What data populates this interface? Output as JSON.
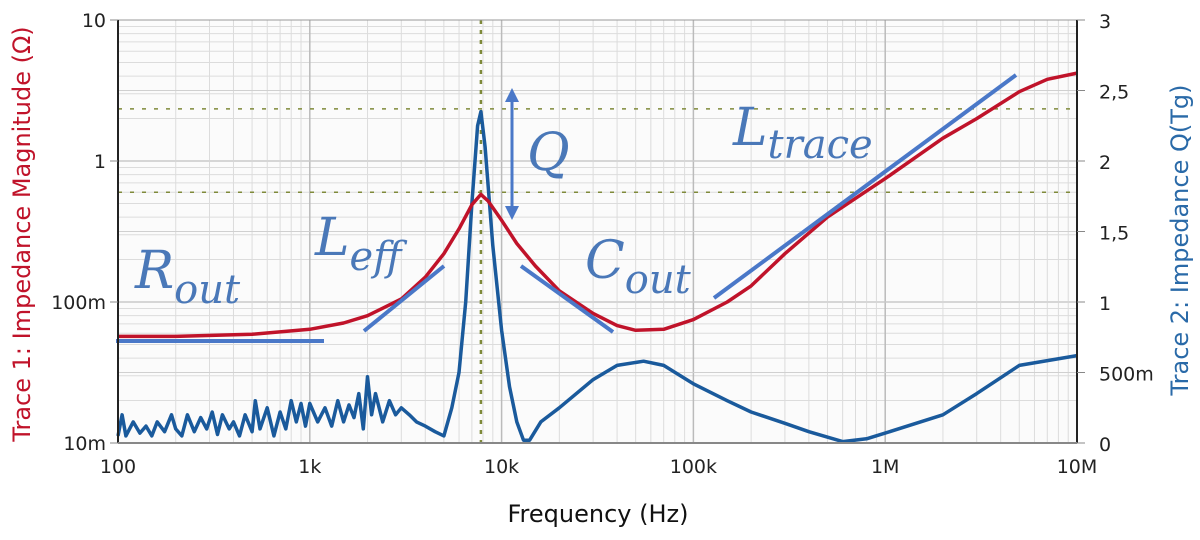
{
  "chart_data": {
    "type": "line",
    "xlabel": "Frequency (Hz)",
    "ylabel_left": "Trace 1: Impedance Magnitude (Ω)",
    "ylabel_right": "Trace 2: Impedance Q(Tg)",
    "x_scale": "log",
    "xlim": [
      100,
      10000000
    ],
    "x_ticks": [
      {
        "v": 100,
        "label": "100"
      },
      {
        "v": 1000,
        "label": "1k"
      },
      {
        "v": 10000,
        "label": "10k"
      },
      {
        "v": 100000,
        "label": "100k"
      },
      {
        "v": 1000000,
        "label": "1M"
      },
      {
        "v": 10000000,
        "label": "10M"
      }
    ],
    "y_left_scale": "log",
    "y_left_lim": [
      0.01,
      10
    ],
    "y_left_ticks": [
      {
        "v": 0.01,
        "label": "10m"
      },
      {
        "v": 0.1,
        "label": "100m"
      },
      {
        "v": 1,
        "label": "1"
      },
      {
        "v": 10,
        "label": "10"
      }
    ],
    "y_right_scale": "linear",
    "y_right_lim": [
      0,
      3
    ],
    "y_right_ticks": [
      {
        "v": 0,
        "label": "0"
      },
      {
        "v": 0.5,
        "label": "500m"
      },
      {
        "v": 1,
        "label": "1"
      },
      {
        "v": 1.5,
        "label": "1,5"
      },
      {
        "v": 2,
        "label": "2"
      },
      {
        "v": 2.5,
        "label": "2,5"
      },
      {
        "v": 3,
        "label": "3"
      }
    ],
    "grid": true,
    "colors": {
      "trace1": "#c0132a",
      "trace2": "#1a5a9c",
      "annotation": "#4a78b8",
      "marker": "#7f8a3a"
    },
    "series": [
      {
        "axis": "left",
        "color": "#c0132a",
        "x": [
          100,
          200,
          500,
          1000,
          1500,
          2000,
          3000,
          4000,
          5000,
          6000,
          7000,
          7800,
          8500,
          10000,
          12000,
          15000,
          20000,
          30000,
          40000,
          50000,
          70000,
          100000,
          150000,
          200000,
          300000,
          500000,
          1000000,
          2000000,
          3000000,
          5000000,
          7000000,
          10000000
        ],
        "y": [
          0.057,
          0.057,
          0.059,
          0.064,
          0.071,
          0.08,
          0.105,
          0.15,
          0.22,
          0.33,
          0.49,
          0.58,
          0.52,
          0.38,
          0.26,
          0.18,
          0.12,
          0.083,
          0.068,
          0.063,
          0.064,
          0.075,
          0.1,
          0.13,
          0.22,
          0.4,
          0.75,
          1.45,
          2.0,
          3.1,
          3.8,
          4.2
        ]
      },
      {
        "axis": "right",
        "color": "#1a5a9c",
        "x": [
          100,
          105,
          110,
          120,
          130,
          140,
          150,
          160,
          175,
          190,
          200,
          215,
          230,
          250,
          270,
          290,
          310,
          330,
          350,
          380,
          400,
          430,
          460,
          500,
          520,
          550,
          600,
          650,
          700,
          750,
          800,
          850,
          900,
          950,
          1000,
          1100,
          1200,
          1300,
          1400,
          1500,
          1600,
          1700,
          1800,
          1900,
          2000,
          2100,
          2200,
          2400,
          2600,
          2800,
          3000,
          3300,
          3600,
          4000,
          4500,
          5000,
          5500,
          6000,
          6500,
          7000,
          7500,
          7800,
          8200,
          9000,
          10000,
          11000,
          12000,
          13000,
          14000,
          16000,
          20000,
          30000,
          40000,
          55000,
          70000,
          100000,
          150000,
          200000,
          300000,
          400000,
          600000,
          800000,
          1000000,
          2000000,
          3000000,
          5000000,
          10000000
        ],
        "y": [
          0.05,
          0.2,
          0.05,
          0.15,
          0.07,
          0.12,
          0.05,
          0.15,
          0.08,
          0.2,
          0.1,
          0.05,
          0.2,
          0.08,
          0.18,
          0.1,
          0.22,
          0.06,
          0.2,
          0.1,
          0.15,
          0.05,
          0.2,
          0.08,
          0.3,
          0.1,
          0.25,
          0.05,
          0.22,
          0.1,
          0.3,
          0.15,
          0.28,
          0.12,
          0.28,
          0.15,
          0.25,
          0.12,
          0.3,
          0.15,
          0.27,
          0.18,
          0.35,
          0.1,
          0.47,
          0.2,
          0.35,
          0.15,
          0.3,
          0.2,
          0.25,
          0.2,
          0.15,
          0.12,
          0.08,
          0.05,
          0.25,
          0.5,
          1.0,
          1.7,
          2.25,
          2.35,
          2.1,
          1.4,
          0.8,
          0.4,
          0.15,
          0.02,
          0.02,
          0.15,
          0.25,
          0.45,
          0.55,
          0.58,
          0.55,
          0.42,
          0.3,
          0.22,
          0.14,
          0.08,
          0.01,
          0.03,
          0.07,
          0.2,
          0.35,
          0.55,
          0.62
        ]
      }
    ],
    "markers": {
      "frequency": 7800,
      "magnitude": 0.6,
      "q": 2.37
    },
    "annotations": [
      {
        "main": "R",
        "sub": "out"
      },
      {
        "main": "L",
        "sub": "eff"
      },
      {
        "main": "C",
        "sub": "out"
      },
      {
        "main": "L",
        "sub": "trace"
      },
      {
        "main": "Q",
        "sub": ""
      }
    ]
  }
}
